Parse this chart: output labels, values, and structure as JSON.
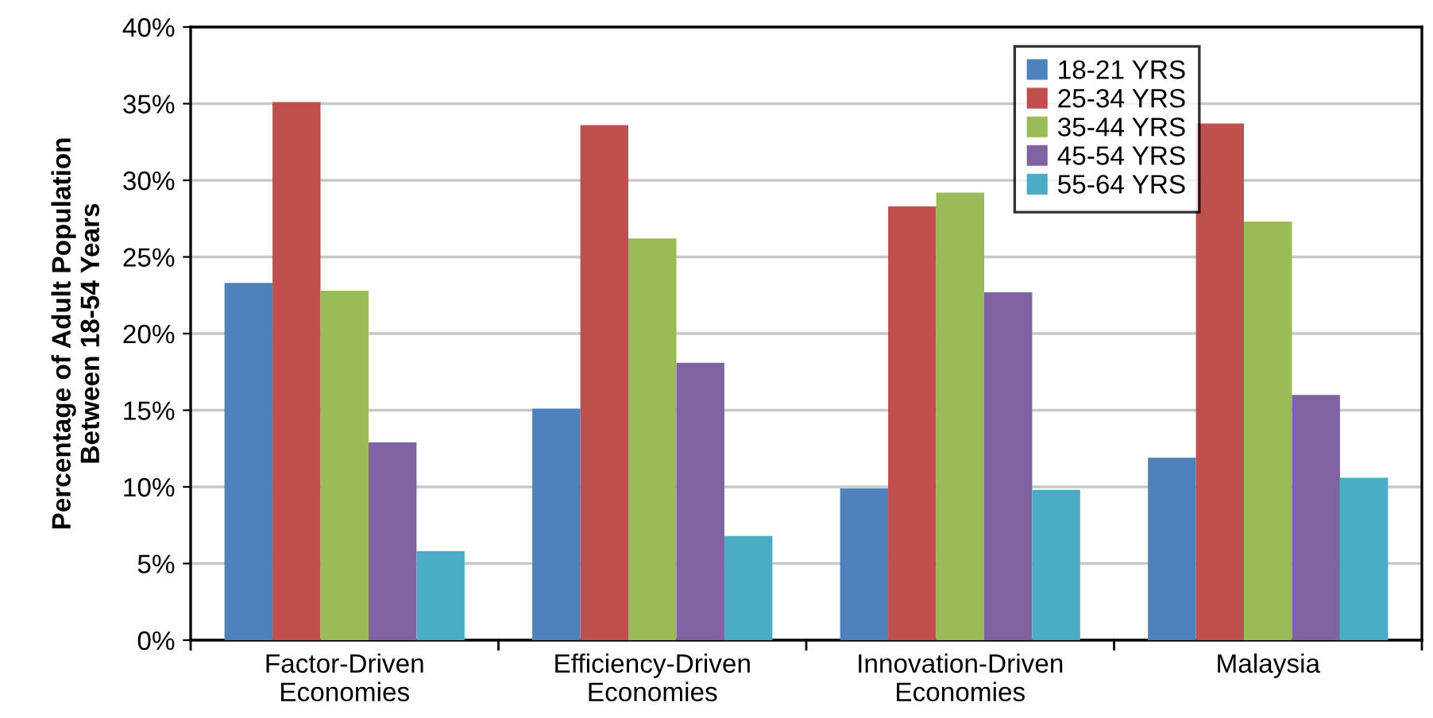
{
  "chart_data": {
    "type": "bar",
    "ylabel": "Percentage of Adult Population\nBetween 18-54 Years",
    "categories": [
      "Factor-Driven\nEconomies",
      "Efficiency-Driven\nEconomies",
      "Innovation-Driven\nEconomies",
      "Malaysia"
    ],
    "series": [
      {
        "name": "18-21 YRS",
        "color": "#4f81bd",
        "values": [
          23.3,
          15.1,
          9.9,
          11.9
        ]
      },
      {
        "name": "25-34 YRS",
        "color": "#c0504d",
        "values": [
          35.1,
          33.6,
          28.3,
          33.7
        ]
      },
      {
        "name": "35-44 YRS",
        "color": "#9bbb59",
        "values": [
          22.8,
          26.2,
          29.2,
          27.3
        ]
      },
      {
        "name": "45-54 YRS",
        "color": "#8064a2",
        "values": [
          12.9,
          18.1,
          22.7,
          16.0
        ]
      },
      {
        "name": "55-64 YRS",
        "color": "#4bacc6",
        "values": [
          5.8,
          6.8,
          9.8,
          10.6
        ]
      }
    ],
    "ylim": [
      0,
      40
    ],
    "yticks": [
      {
        "value": 0,
        "label": "0%"
      },
      {
        "value": 5,
        "label": "5%"
      },
      {
        "value": 10,
        "label": "10%"
      },
      {
        "value": 15,
        "label": "15%"
      },
      {
        "value": 20,
        "label": "20%"
      },
      {
        "value": 25,
        "label": "25%"
      },
      {
        "value": 30,
        "label": "30%"
      },
      {
        "value": 35,
        "label": "35%"
      },
      {
        "value": 40,
        "label": "40%"
      }
    ],
    "grid": "y",
    "legend": "top right"
  }
}
